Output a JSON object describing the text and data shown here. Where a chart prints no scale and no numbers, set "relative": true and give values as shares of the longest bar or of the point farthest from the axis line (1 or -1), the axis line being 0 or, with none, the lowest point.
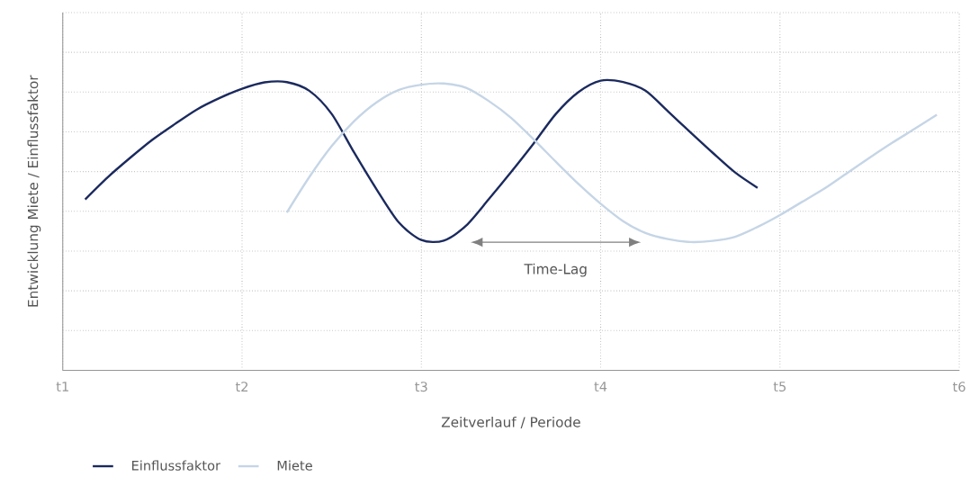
{
  "chart_data": {
    "type": "line",
    "xlabel": "Zeitverlauf / Periode",
    "ylabel": "Entwicklung Miete / Einflussfaktor",
    "relative": true,
    "grid": true,
    "legend": "bottom",
    "marker": "none",
    "line_style": "solid",
    "categories": [
      "t1",
      null,
      null,
      null,
      null,
      null,
      null,
      null,
      "t2",
      null,
      null,
      null,
      null,
      null,
      null,
      null,
      "t3",
      null,
      null,
      null,
      null,
      null,
      null,
      null,
      "t4",
      null,
      null,
      null,
      null,
      null,
      null,
      null,
      "t5",
      null,
      null,
      null,
      null,
      null,
      null,
      null,
      "t6"
    ],
    "annotations": [
      "Time-Lag"
    ],
    "series": [
      {
        "name": "Einflussfaktor",
        "color": "#1b2a5e",
        "values": [
          null,
          0.59,
          0.666,
          0.733,
          0.796,
          0.85,
          0.901,
          0.94,
          0.972,
          0.994,
          0.995,
          0.965,
          0.885,
          0.752,
          0.625,
          0.51,
          0.45,
          0.448,
          0.5,
          0.59,
          0.684,
          0.782,
          0.885,
          0.96,
          1.0,
          0.995,
          0.965,
          0.894,
          0.822,
          0.751,
          0.683,
          0.63,
          null,
          null,
          null,
          null,
          null,
          null,
          null,
          null,
          null
        ]
      },
      {
        "name": "Miete",
        "color": "#c5d5e6",
        "values": [
          null,
          null,
          null,
          null,
          null,
          null,
          null,
          null,
          null,
          null,
          0.545,
          0.667,
          0.774,
          0.86,
          0.925,
          0.968,
          0.986,
          0.99,
          0.975,
          0.93,
          0.872,
          0.798,
          0.72,
          0.644,
          0.575,
          0.515,
          0.474,
          0.453,
          0.443,
          0.447,
          0.461,
          0.495,
          0.536,
          0.582,
          0.628,
          0.681,
          0.734,
          0.785,
          0.833,
          0.882,
          null
        ]
      }
    ]
  }
}
